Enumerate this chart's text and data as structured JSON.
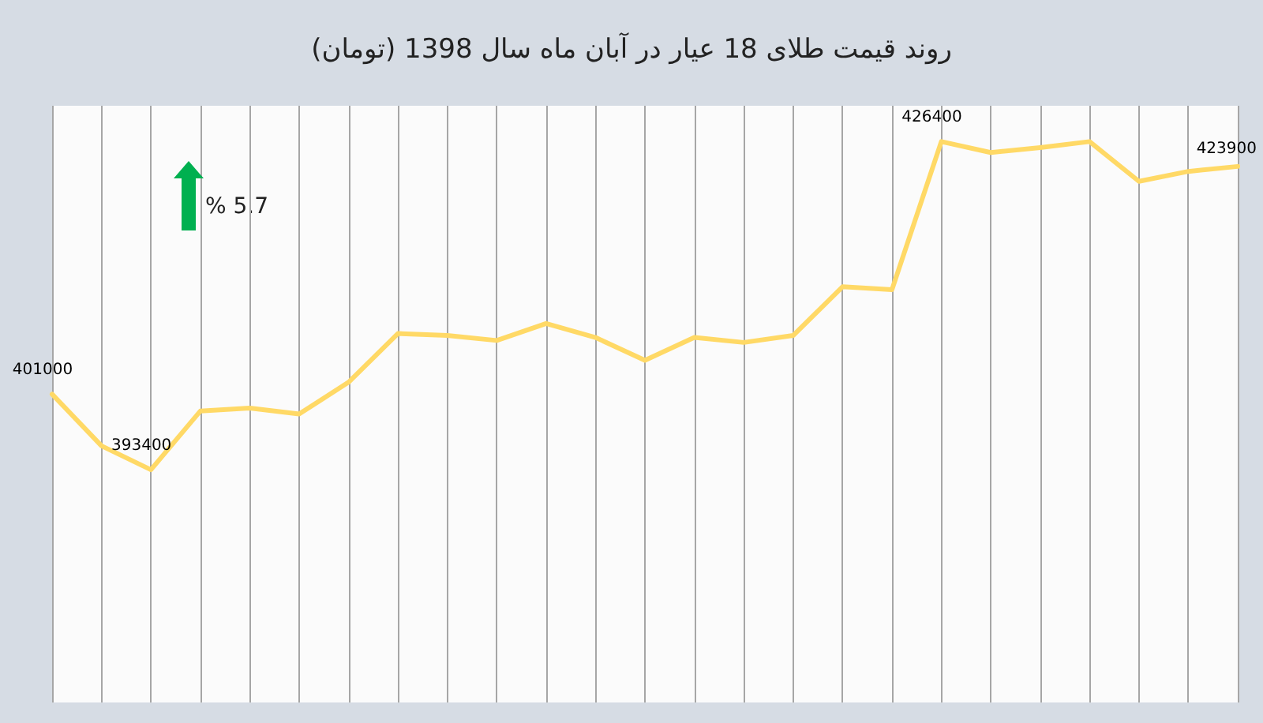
{
  "chart_data": {
    "type": "line",
    "title": "روند قیمت طلای 18 عیار در آبان ماه سال 1398 (تومان)",
    "categories": [
      null,
      null,
      null,
      null,
      null,
      null,
      null,
      null,
      null,
      null,
      null,
      null,
      null,
      null,
      null,
      null,
      null,
      null,
      null,
      null,
      null,
      null,
      null,
      null,
      null
    ],
    "values": [
      401000,
      395800,
      393400,
      399300,
      399600,
      399000,
      402200,
      407100,
      406900,
      406400,
      408100,
      406700,
      404400,
      406700,
      406200,
      406900,
      411800,
      411500,
      426400,
      425300,
      425800,
      426400,
      422400,
      423400,
      423900
    ],
    "value_labels": [
      "401000",
      null,
      "393400",
      null,
      null,
      null,
      null,
      null,
      null,
      null,
      null,
      null,
      null,
      null,
      null,
      null,
      null,
      null,
      "426400",
      null,
      null,
      null,
      null,
      null,
      "423900"
    ],
    "color": "#ffd966",
    "ylim": [
      370000,
      430000
    ],
    "tick_labels": false,
    "grid": "x",
    "marker": "none",
    "line_style": "solid",
    "annotations": [
      "% 5.7"
    ]
  }
}
